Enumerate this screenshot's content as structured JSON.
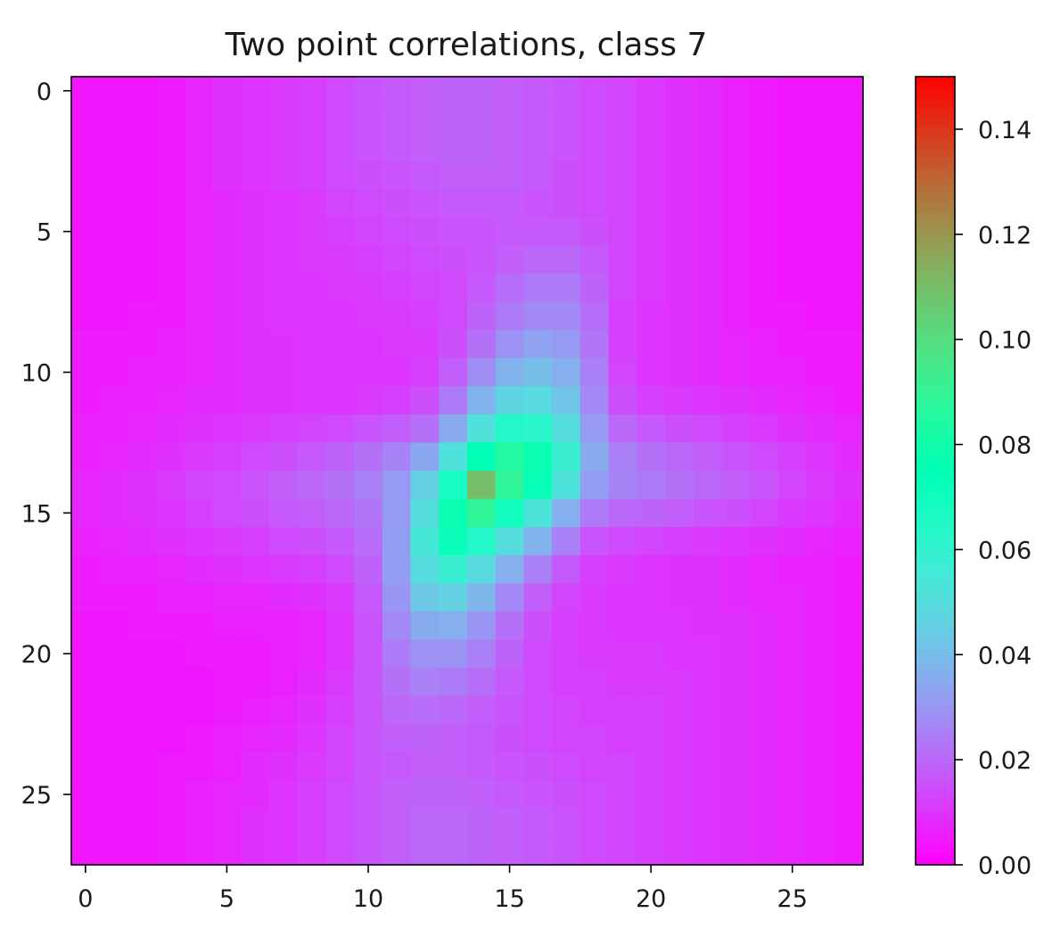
{
  "chart_data": {
    "type": "heatmap",
    "title": "Two point correlations, class 7",
    "colormap": "rainbow",
    "x": {
      "min": -0.5,
      "max": 27.5,
      "ticks": [
        0,
        5,
        10,
        15,
        20,
        25
      ],
      "tick_labels": [
        "0",
        "5",
        "10",
        "15",
        "20",
        "25"
      ]
    },
    "y": {
      "min": -0.5,
      "max": 27.5,
      "inverted": true,
      "ticks": [
        0,
        5,
        10,
        15,
        20,
        25
      ],
      "tick_labels": [
        "0",
        "5",
        "10",
        "15",
        "20",
        "25"
      ]
    },
    "colorbar": {
      "min": 0.0,
      "max": 0.15,
      "ticks": [
        0.0,
        0.02,
        0.04,
        0.06,
        0.08,
        0.1,
        0.12,
        0.14
      ],
      "tick_labels": [
        "0.00",
        "0.02",
        "0.04",
        "0.06",
        "0.08",
        "0.10",
        "0.12",
        "0.14"
      ]
    },
    "grid": false,
    "rows": 28,
    "cols": 28,
    "values": [
      [
        0.004,
        0.004,
        0.004,
        0.005,
        0.007,
        0.009,
        0.01,
        0.011,
        0.012,
        0.014,
        0.016,
        0.017,
        0.018,
        0.019,
        0.019,
        0.018,
        0.017,
        0.016,
        0.014,
        0.013,
        0.011,
        0.009,
        0.008,
        0.006,
        0.005,
        0.004,
        0.004,
        0.004
      ],
      [
        0.004,
        0.004,
        0.004,
        0.005,
        0.007,
        0.009,
        0.01,
        0.011,
        0.012,
        0.014,
        0.016,
        0.017,
        0.018,
        0.019,
        0.019,
        0.018,
        0.017,
        0.016,
        0.014,
        0.013,
        0.011,
        0.009,
        0.008,
        0.006,
        0.005,
        0.004,
        0.004,
        0.004
      ],
      [
        0.004,
        0.004,
        0.004,
        0.005,
        0.007,
        0.009,
        0.01,
        0.011,
        0.012,
        0.014,
        0.016,
        0.017,
        0.018,
        0.019,
        0.019,
        0.018,
        0.017,
        0.016,
        0.014,
        0.013,
        0.011,
        0.009,
        0.008,
        0.006,
        0.005,
        0.004,
        0.004,
        0.004
      ],
      [
        0.004,
        0.004,
        0.004,
        0.005,
        0.007,
        0.009,
        0.01,
        0.011,
        0.012,
        0.014,
        0.015,
        0.016,
        0.017,
        0.018,
        0.018,
        0.018,
        0.017,
        0.015,
        0.014,
        0.013,
        0.011,
        0.009,
        0.008,
        0.006,
        0.005,
        0.004,
        0.004,
        0.004
      ],
      [
        0.004,
        0.004,
        0.004,
        0.005,
        0.007,
        0.008,
        0.009,
        0.01,
        0.011,
        0.013,
        0.014,
        0.015,
        0.016,
        0.017,
        0.017,
        0.017,
        0.016,
        0.015,
        0.014,
        0.013,
        0.011,
        0.009,
        0.008,
        0.006,
        0.005,
        0.004,
        0.004,
        0.004
      ],
      [
        0.004,
        0.004,
        0.004,
        0.005,
        0.007,
        0.008,
        0.009,
        0.01,
        0.011,
        0.012,
        0.013,
        0.014,
        0.015,
        0.016,
        0.016,
        0.017,
        0.017,
        0.017,
        0.015,
        0.013,
        0.011,
        0.009,
        0.008,
        0.006,
        0.005,
        0.004,
        0.004,
        0.004
      ],
      [
        0.004,
        0.004,
        0.004,
        0.005,
        0.007,
        0.008,
        0.009,
        0.01,
        0.011,
        0.011,
        0.012,
        0.013,
        0.014,
        0.015,
        0.016,
        0.018,
        0.02,
        0.02,
        0.017,
        0.013,
        0.011,
        0.009,
        0.008,
        0.006,
        0.005,
        0.004,
        0.004,
        0.004
      ],
      [
        0.004,
        0.004,
        0.004,
        0.005,
        0.007,
        0.008,
        0.009,
        0.01,
        0.01,
        0.011,
        0.011,
        0.012,
        0.013,
        0.014,
        0.017,
        0.021,
        0.024,
        0.024,
        0.019,
        0.013,
        0.011,
        0.009,
        0.008,
        0.006,
        0.005,
        0.004,
        0.004,
        0.004
      ],
      [
        0.004,
        0.004,
        0.005,
        0.005,
        0.007,
        0.008,
        0.009,
        0.01,
        0.01,
        0.01,
        0.011,
        0.011,
        0.012,
        0.014,
        0.019,
        0.024,
        0.027,
        0.027,
        0.021,
        0.012,
        0.01,
        0.009,
        0.008,
        0.006,
        0.005,
        0.005,
        0.004,
        0.004
      ],
      [
        0.005,
        0.005,
        0.005,
        0.006,
        0.007,
        0.008,
        0.009,
        0.009,
        0.01,
        0.01,
        0.01,
        0.011,
        0.011,
        0.015,
        0.022,
        0.029,
        0.033,
        0.031,
        0.023,
        0.012,
        0.01,
        0.009,
        0.008,
        0.007,
        0.006,
        0.005,
        0.005,
        0.005
      ],
      [
        0.005,
        0.005,
        0.006,
        0.006,
        0.007,
        0.008,
        0.009,
        0.009,
        0.01,
        0.01,
        0.01,
        0.01,
        0.012,
        0.018,
        0.028,
        0.037,
        0.04,
        0.036,
        0.025,
        0.013,
        0.01,
        0.009,
        0.008,
        0.007,
        0.006,
        0.006,
        0.005,
        0.005
      ],
      [
        0.005,
        0.006,
        0.006,
        0.007,
        0.008,
        0.008,
        0.009,
        0.009,
        0.01,
        0.01,
        0.011,
        0.012,
        0.015,
        0.024,
        0.037,
        0.047,
        0.049,
        0.042,
        0.027,
        0.015,
        0.012,
        0.011,
        0.01,
        0.009,
        0.008,
        0.007,
        0.006,
        0.005
      ],
      [
        0.006,
        0.006,
        0.007,
        0.008,
        0.009,
        0.01,
        0.011,
        0.012,
        0.013,
        0.014,
        0.016,
        0.018,
        0.022,
        0.035,
        0.052,
        0.064,
        0.062,
        0.05,
        0.031,
        0.02,
        0.017,
        0.015,
        0.014,
        0.012,
        0.011,
        0.009,
        0.008,
        0.007
      ],
      [
        0.006,
        0.007,
        0.008,
        0.009,
        0.011,
        0.012,
        0.014,
        0.015,
        0.017,
        0.019,
        0.022,
        0.026,
        0.034,
        0.052,
        0.075,
        0.085,
        0.078,
        0.058,
        0.035,
        0.025,
        0.022,
        0.02,
        0.018,
        0.016,
        0.014,
        0.012,
        0.01,
        0.008
      ],
      [
        0.007,
        0.008,
        0.009,
        0.011,
        0.013,
        0.014,
        0.016,
        0.018,
        0.02,
        0.022,
        0.025,
        0.031,
        0.045,
        0.068,
        0.11,
        0.089,
        0.073,
        0.052,
        0.032,
        0.026,
        0.024,
        0.022,
        0.02,
        0.018,
        0.016,
        0.013,
        0.011,
        0.009
      ],
      [
        0.007,
        0.008,
        0.009,
        0.01,
        0.012,
        0.014,
        0.015,
        0.017,
        0.018,
        0.02,
        0.023,
        0.031,
        0.05,
        0.078,
        0.089,
        0.07,
        0.053,
        0.036,
        0.024,
        0.02,
        0.019,
        0.018,
        0.016,
        0.015,
        0.013,
        0.011,
        0.01,
        0.008
      ],
      [
        0.006,
        0.007,
        0.008,
        0.009,
        0.01,
        0.011,
        0.012,
        0.014,
        0.015,
        0.017,
        0.021,
        0.032,
        0.054,
        0.072,
        0.064,
        0.05,
        0.037,
        0.025,
        0.016,
        0.014,
        0.013,
        0.012,
        0.011,
        0.01,
        0.009,
        0.008,
        0.007,
        0.006
      ],
      [
        0.005,
        0.006,
        0.006,
        0.007,
        0.008,
        0.009,
        0.01,
        0.011,
        0.012,
        0.014,
        0.019,
        0.032,
        0.05,
        0.058,
        0.049,
        0.036,
        0.025,
        0.017,
        0.012,
        0.011,
        0.01,
        0.009,
        0.009,
        0.008,
        0.007,
        0.006,
        0.006,
        0.005
      ],
      [
        0.005,
        0.005,
        0.005,
        0.006,
        0.006,
        0.007,
        0.007,
        0.008,
        0.009,
        0.011,
        0.017,
        0.03,
        0.043,
        0.046,
        0.038,
        0.027,
        0.018,
        0.013,
        0.011,
        0.01,
        0.01,
        0.009,
        0.009,
        0.008,
        0.007,
        0.007,
        0.006,
        0.005
      ],
      [
        0.004,
        0.004,
        0.005,
        0.005,
        0.005,
        0.006,
        0.006,
        0.006,
        0.007,
        0.01,
        0.016,
        0.027,
        0.035,
        0.036,
        0.03,
        0.022,
        0.015,
        0.012,
        0.011,
        0.01,
        0.01,
        0.01,
        0.009,
        0.009,
        0.008,
        0.007,
        0.006,
        0.005
      ],
      [
        0.004,
        0.004,
        0.004,
        0.004,
        0.005,
        0.005,
        0.005,
        0.006,
        0.007,
        0.01,
        0.016,
        0.024,
        0.029,
        0.029,
        0.025,
        0.019,
        0.014,
        0.012,
        0.011,
        0.011,
        0.011,
        0.01,
        0.01,
        0.009,
        0.008,
        0.007,
        0.006,
        0.005
      ],
      [
        0.004,
        0.004,
        0.004,
        0.004,
        0.004,
        0.005,
        0.005,
        0.006,
        0.008,
        0.011,
        0.016,
        0.022,
        0.025,
        0.024,
        0.021,
        0.017,
        0.014,
        0.012,
        0.012,
        0.011,
        0.011,
        0.011,
        0.01,
        0.009,
        0.008,
        0.007,
        0.006,
        0.005
      ],
      [
        0.004,
        0.004,
        0.004,
        0.004,
        0.004,
        0.005,
        0.006,
        0.007,
        0.009,
        0.012,
        0.016,
        0.02,
        0.021,
        0.02,
        0.018,
        0.016,
        0.014,
        0.013,
        0.012,
        0.012,
        0.012,
        0.011,
        0.01,
        0.009,
        0.008,
        0.007,
        0.006,
        0.005
      ],
      [
        0.004,
        0.004,
        0.004,
        0.004,
        0.005,
        0.006,
        0.007,
        0.008,
        0.01,
        0.013,
        0.016,
        0.018,
        0.019,
        0.018,
        0.017,
        0.015,
        0.014,
        0.013,
        0.013,
        0.012,
        0.012,
        0.011,
        0.01,
        0.009,
        0.008,
        0.007,
        0.006,
        0.005
      ],
      [
        0.004,
        0.004,
        0.004,
        0.005,
        0.005,
        0.006,
        0.008,
        0.009,
        0.011,
        0.013,
        0.016,
        0.017,
        0.018,
        0.018,
        0.017,
        0.016,
        0.015,
        0.014,
        0.013,
        0.013,
        0.012,
        0.011,
        0.01,
        0.009,
        0.008,
        0.007,
        0.006,
        0.005
      ],
      [
        0.004,
        0.004,
        0.004,
        0.005,
        0.006,
        0.007,
        0.008,
        0.01,
        0.012,
        0.014,
        0.016,
        0.018,
        0.019,
        0.019,
        0.018,
        0.017,
        0.016,
        0.015,
        0.014,
        0.013,
        0.012,
        0.011,
        0.01,
        0.009,
        0.008,
        0.007,
        0.006,
        0.005
      ],
      [
        0.004,
        0.004,
        0.004,
        0.005,
        0.006,
        0.007,
        0.009,
        0.01,
        0.012,
        0.014,
        0.016,
        0.018,
        0.02,
        0.02,
        0.019,
        0.018,
        0.017,
        0.016,
        0.014,
        0.013,
        0.012,
        0.011,
        0.01,
        0.009,
        0.008,
        0.007,
        0.006,
        0.005
      ],
      [
        0.004,
        0.004,
        0.004,
        0.005,
        0.006,
        0.007,
        0.009,
        0.01,
        0.012,
        0.014,
        0.016,
        0.018,
        0.02,
        0.02,
        0.019,
        0.018,
        0.017,
        0.016,
        0.014,
        0.013,
        0.012,
        0.011,
        0.01,
        0.009,
        0.008,
        0.007,
        0.006,
        0.005
      ]
    ]
  }
}
